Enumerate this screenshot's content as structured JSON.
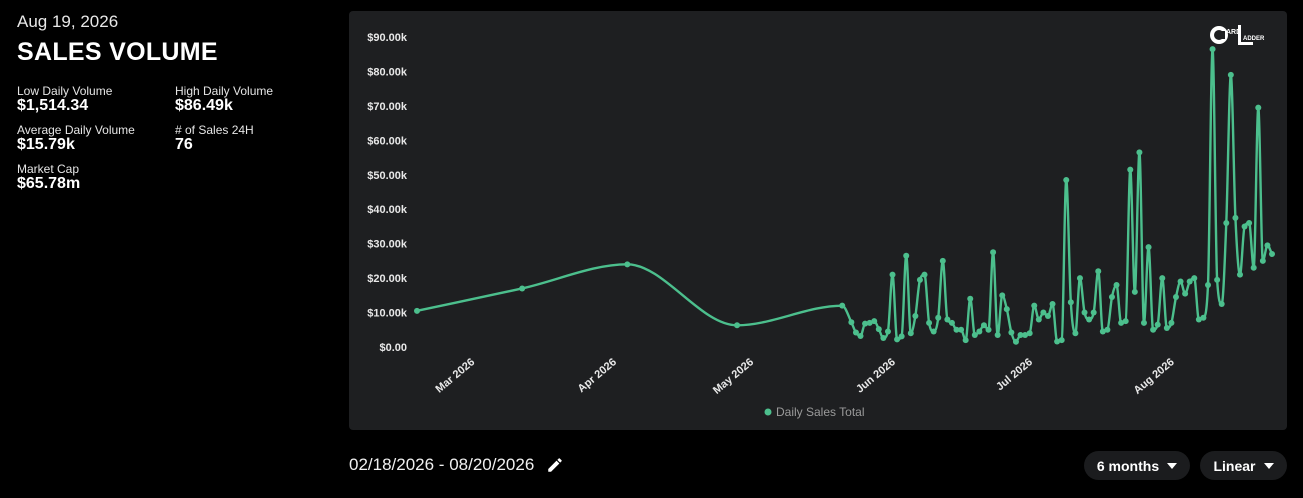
{
  "header": {
    "date": "Aug 19, 2026",
    "title": "SALES VOLUME"
  },
  "stats": [
    {
      "label": "Low Daily Volume",
      "value": "$1,514.34"
    },
    {
      "label": "High Daily Volume",
      "value": "$86.49k"
    },
    {
      "label": "Average Daily Volume",
      "value": "$15.79k"
    },
    {
      "label": "# of Sales 24H",
      "value": "76"
    },
    {
      "label": "Market Cap",
      "value": "$65.78m"
    }
  ],
  "logo": {
    "text": "CARDLADDER",
    "icon": "card-ladder-logo"
  },
  "footer": {
    "date_range": "02/18/2026 - 08/20/2026",
    "edit_icon": "pencil-icon",
    "range_select": "6 months",
    "scale_select": "Linear"
  },
  "colors": {
    "line": "#4cbf8d",
    "panel": "#1e1f21",
    "background": "#000000"
  },
  "chart_data": {
    "type": "line",
    "series": [
      {
        "name": "Daily Sales Total",
        "points": [
          [
            "2026-02-18",
            10500
          ],
          [
            "2026-03-13",
            17000
          ],
          [
            "2026-04-05",
            24000
          ],
          [
            "2026-04-29",
            6300
          ],
          [
            "2026-05-22",
            12000
          ],
          [
            "2026-05-24",
            7200
          ],
          [
            "2026-05-25",
            4200
          ],
          [
            "2026-05-26",
            3200
          ],
          [
            "2026-05-27",
            6800
          ],
          [
            "2026-05-28",
            7000
          ],
          [
            "2026-05-29",
            7500
          ],
          [
            "2026-05-30",
            5200
          ],
          [
            "2026-05-31",
            2600
          ],
          [
            "2026-06-01",
            4500
          ],
          [
            "2026-06-02",
            21000
          ],
          [
            "2026-06-03",
            2200
          ],
          [
            "2026-06-04",
            3100
          ],
          [
            "2026-06-05",
            26500
          ],
          [
            "2026-06-06",
            4000
          ],
          [
            "2026-06-07",
            9000
          ],
          [
            "2026-06-08",
            19500
          ],
          [
            "2026-06-09",
            21000
          ],
          [
            "2026-06-10",
            7000
          ],
          [
            "2026-06-11",
            4500
          ],
          [
            "2026-06-12",
            8500
          ],
          [
            "2026-06-13",
            25000
          ],
          [
            "2026-06-14",
            8000
          ],
          [
            "2026-06-15",
            7000
          ],
          [
            "2026-06-16",
            5000
          ],
          [
            "2026-06-17",
            5000
          ],
          [
            "2026-06-18",
            2000
          ],
          [
            "2026-06-19",
            14000
          ],
          [
            "2026-06-20",
            3500
          ],
          [
            "2026-06-21",
            4500
          ],
          [
            "2026-06-22",
            6300
          ],
          [
            "2026-06-23",
            5000
          ],
          [
            "2026-06-24",
            27500
          ],
          [
            "2026-06-25",
            3500
          ],
          [
            "2026-06-26",
            15000
          ],
          [
            "2026-06-27",
            11000
          ],
          [
            "2026-06-28",
            4200
          ],
          [
            "2026-06-29",
            1514
          ],
          [
            "2026-06-30",
            3500
          ],
          [
            "2026-07-01",
            3500
          ],
          [
            "2026-07-02",
            4000
          ],
          [
            "2026-07-03",
            12000
          ],
          [
            "2026-07-04",
            8000
          ],
          [
            "2026-07-05",
            10000
          ],
          [
            "2026-07-06",
            9000
          ],
          [
            "2026-07-07",
            12500
          ],
          [
            "2026-07-08",
            1600
          ],
          [
            "2026-07-09",
            2000
          ],
          [
            "2026-07-10",
            48500
          ],
          [
            "2026-07-11",
            13000
          ],
          [
            "2026-07-12",
            4000
          ],
          [
            "2026-07-13",
            20000
          ],
          [
            "2026-07-14",
            10000
          ],
          [
            "2026-07-15",
            8000
          ],
          [
            "2026-07-16",
            10000
          ],
          [
            "2026-07-17",
            22000
          ],
          [
            "2026-07-18",
            4500
          ],
          [
            "2026-07-19",
            5000
          ],
          [
            "2026-07-20",
            14500
          ],
          [
            "2026-07-21",
            18000
          ],
          [
            "2026-07-22",
            7000
          ],
          [
            "2026-07-23",
            7500
          ],
          [
            "2026-07-24",
            51500
          ],
          [
            "2026-07-25",
            16000
          ],
          [
            "2026-07-26",
            56500
          ],
          [
            "2026-07-27",
            7000
          ],
          [
            "2026-07-28",
            29000
          ],
          [
            "2026-07-29",
            5000
          ],
          [
            "2026-07-30",
            6500
          ],
          [
            "2026-07-31",
            20000
          ],
          [
            "2026-08-01",
            5500
          ],
          [
            "2026-08-02",
            7000
          ],
          [
            "2026-08-03",
            14500
          ],
          [
            "2026-08-04",
            19000
          ],
          [
            "2026-08-05",
            15500
          ],
          [
            "2026-08-06",
            19000
          ],
          [
            "2026-08-07",
            20000
          ],
          [
            "2026-08-08",
            8000
          ],
          [
            "2026-08-09",
            8500
          ],
          [
            "2026-08-10",
            18000
          ],
          [
            "2026-08-11",
            86490
          ],
          [
            "2026-08-12",
            19500
          ],
          [
            "2026-08-13",
            12500
          ],
          [
            "2026-08-14",
            36000
          ],
          [
            "2026-08-15",
            79000
          ],
          [
            "2026-08-16",
            37500
          ],
          [
            "2026-08-17",
            21000
          ],
          [
            "2026-08-18",
            35000
          ],
          [
            "2026-08-19",
            36000
          ],
          [
            "2026-08-20",
            23000
          ],
          [
            "2026-08-21",
            69500
          ],
          [
            "2026-08-22",
            25000
          ],
          [
            "2026-08-23",
            29500
          ],
          [
            "2026-08-24",
            27000
          ]
        ]
      }
    ],
    "x_ticks": [
      "Mar 2026",
      "Apr 2026",
      "May 2026",
      "Jun 2026",
      "Jul 2026",
      "Aug 2026"
    ],
    "x_tick_dates": [
      "2026-03-01",
      "2026-04-01",
      "2026-05-01",
      "2026-06-01",
      "2026-07-01",
      "2026-08-01"
    ],
    "y_ticks": [
      "$0.00",
      "$10.00k",
      "$20.00k",
      "$30.00k",
      "$40.00k",
      "$50.00k",
      "$60.00k",
      "$70.00k",
      "$80.00k",
      "$90.00k"
    ],
    "y_tick_values": [
      0,
      10000,
      20000,
      30000,
      40000,
      50000,
      60000,
      70000,
      80000,
      90000
    ],
    "x_range": [
      "2026-02-18",
      "2026-08-24"
    ],
    "ylim": [
      0,
      90000
    ],
    "legend": "Daily Sales Total",
    "legend_position": "bottom",
    "grid": false
  }
}
